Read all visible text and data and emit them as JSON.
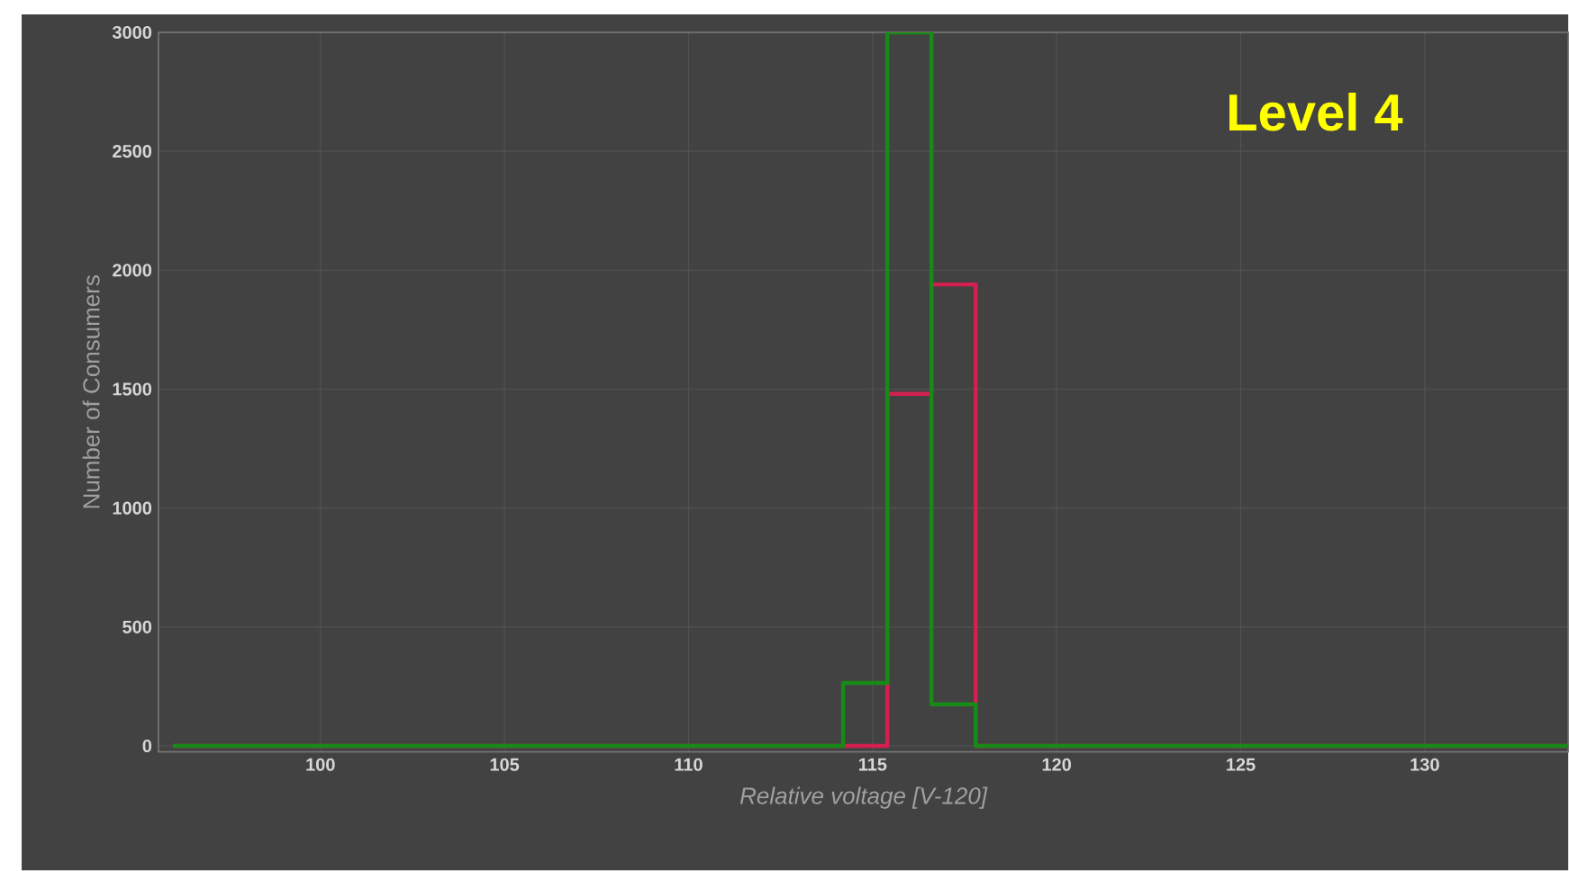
{
  "chart_data": {
    "type": "histogram",
    "title": "Level 4",
    "xlabel": "Relative voltage [V-120]",
    "ylabel": "Number of Consumers",
    "bins": [
      96,
      114.2,
      115.4,
      116.6,
      117.8,
      133.9
    ],
    "series": [
      {
        "color": "#d42050",
        "values": [
          0,
          0,
          1480,
          1940,
          0
        ]
      },
      {
        "color": "#178a17",
        "values": [
          0,
          265,
          3000,
          175,
          0
        ]
      }
    ],
    "xlim": [
      95.6,
      133.9
    ],
    "ylim": [
      -25,
      3000
    ],
    "xticks": [
      100,
      105,
      110,
      115,
      120,
      125,
      130
    ],
    "yticks": [
      0,
      500,
      1000,
      1500,
      2000,
      2500,
      3000
    ],
    "grid": true
  }
}
